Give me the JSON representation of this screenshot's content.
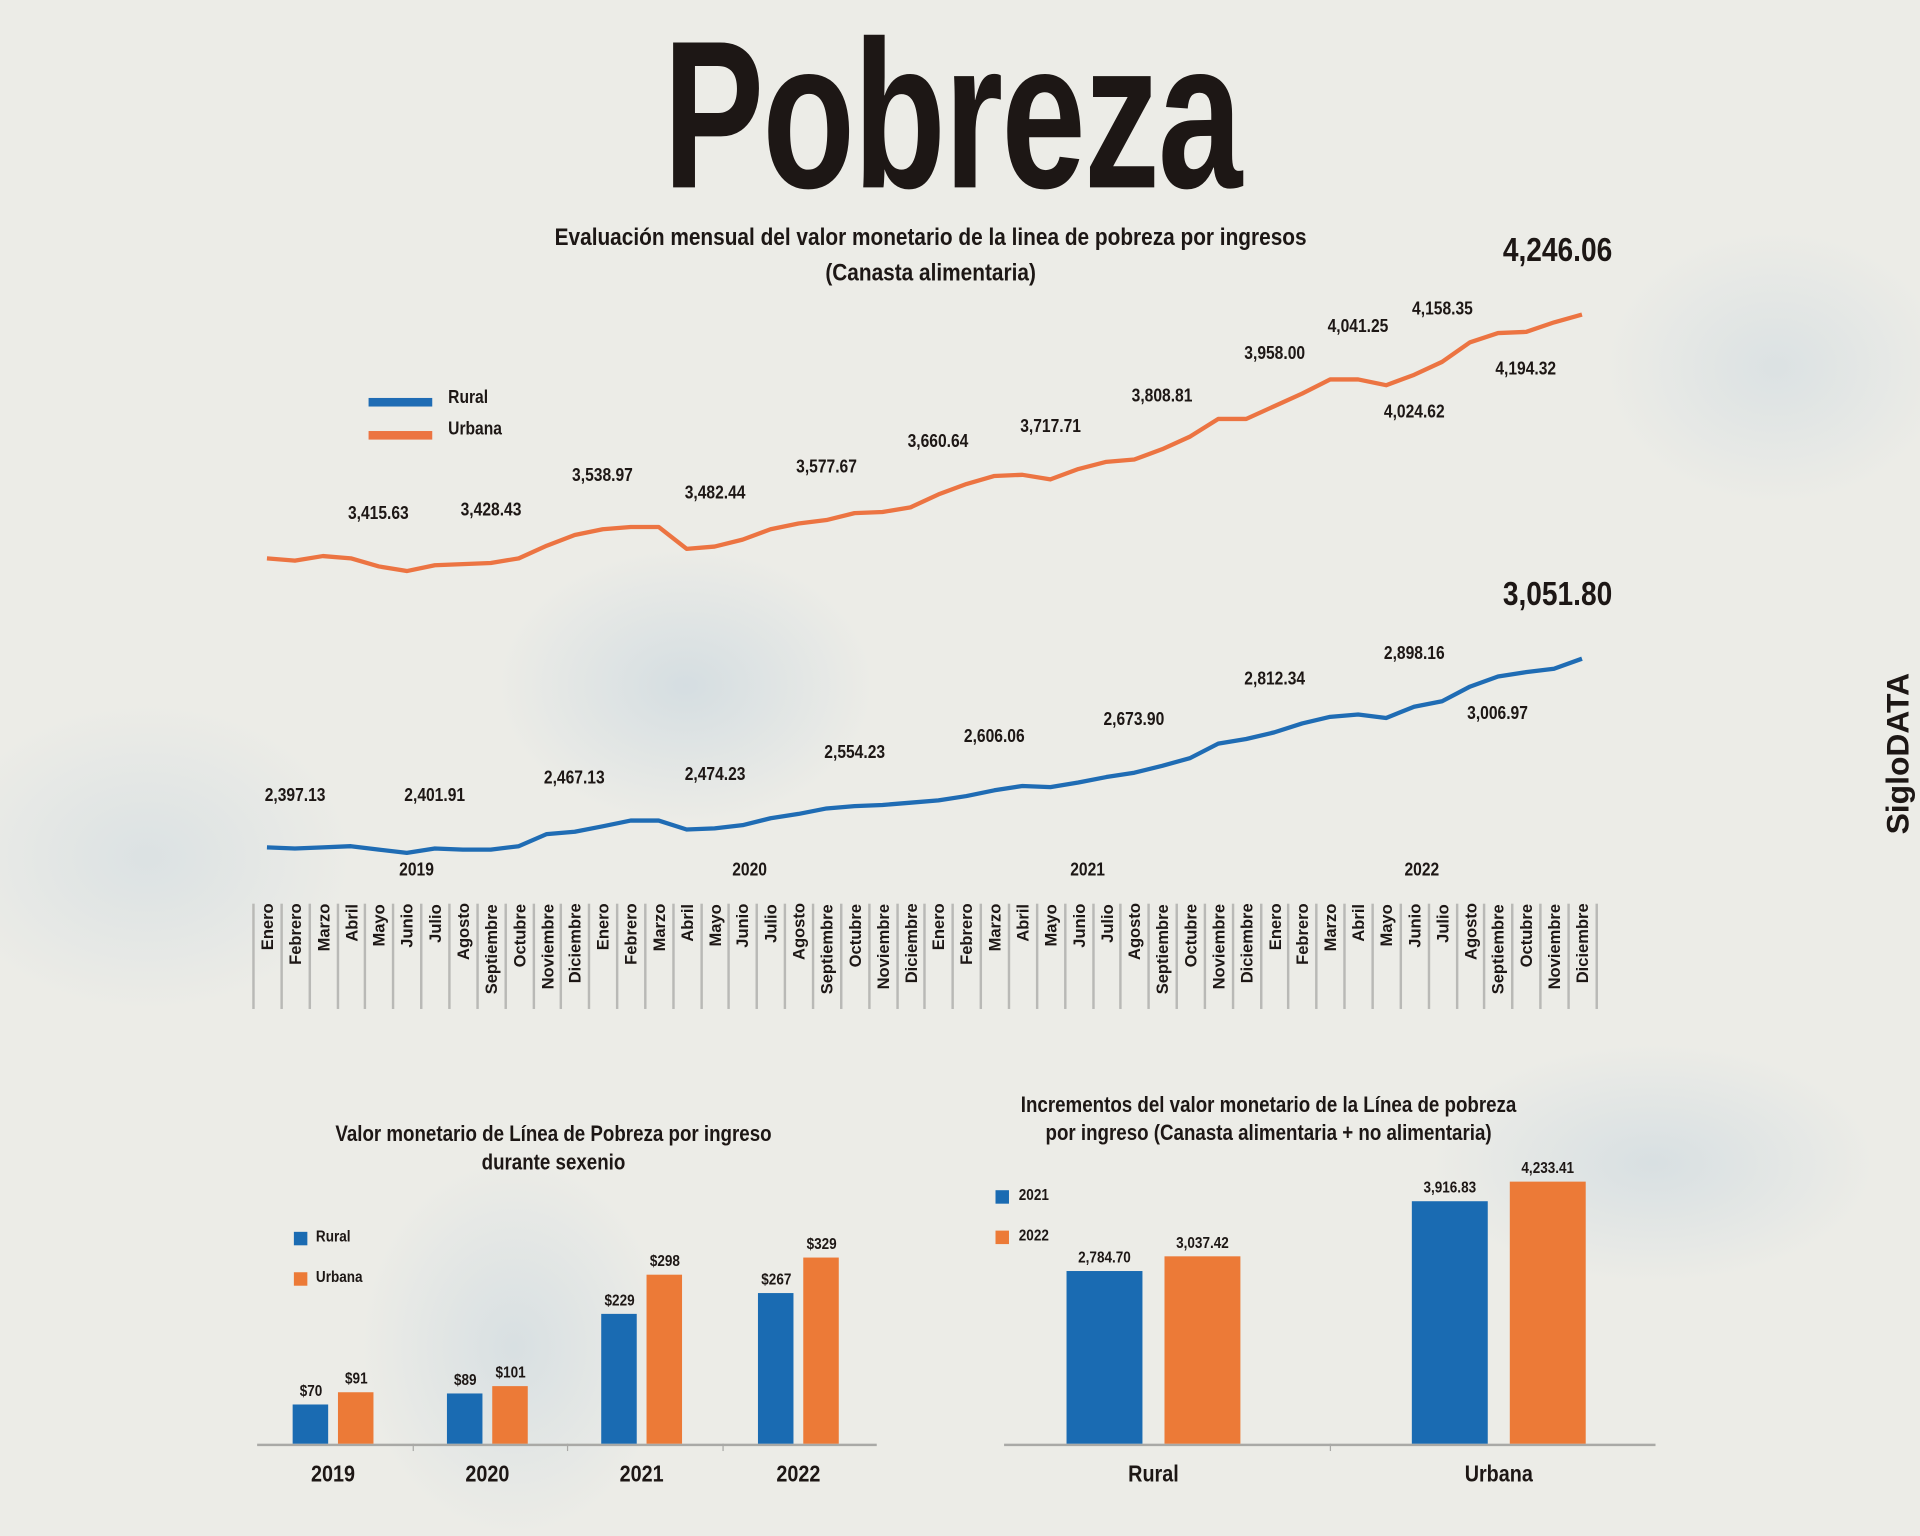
{
  "title": "Pobreza",
  "brand": "SigloDATA",
  "colors": {
    "rural": "#1f6cb4",
    "urbana": "#ec7442",
    "bar_blue": "#1a6bb2",
    "bar_orange": "#ec7a37"
  },
  "chart_data": [
    {
      "type": "line",
      "title": "Evaluación mensual del valor monetario de la linea de pobreza por ingresos",
      "subtitle": "(Canasta alimentaria)",
      "legend": {
        "position": "top-left",
        "entries": [
          "Rural",
          "Urbana"
        ]
      },
      "years": [
        "2019",
        "2020",
        "2021",
        "2022"
      ],
      "months": [
        "Enero",
        "Febrero",
        "Marzo",
        "Abril",
        "Mayo",
        "Junio",
        "Julio",
        "Agosto",
        "Septiembre",
        "Octubre",
        "Noviembre",
        "Diciembre"
      ],
      "series": [
        {
          "name": "Rural",
          "values": [
            2397,
            2393,
            2397,
            2401,
            2389,
            2378,
            2393,
            2389,
            2389,
            2401,
            2443,
            2451,
            2470,
            2490,
            2490,
            2459,
            2463,
            2474,
            2498,
            2513,
            2532,
            2540,
            2544,
            2552,
            2560,
            2575,
            2595,
            2610,
            2606,
            2622,
            2641,
            2656,
            2680,
            2707,
            2757,
            2773,
            2796,
            2827,
            2850,
            2858,
            2846,
            2885,
            2904,
            2955,
            2990,
            3005,
            3017,
            3051.8
          ]
        },
        {
          "name": "Urbana",
          "values": [
            3400,
            3392,
            3408,
            3400,
            3372,
            3356,
            3376,
            3380,
            3384,
            3400,
            3444,
            3481,
            3501,
            3509,
            3509,
            3433,
            3441,
            3465,
            3501,
            3521,
            3533,
            3557,
            3561,
            3577,
            3622,
            3658,
            3686,
            3690,
            3674,
            3710,
            3735,
            3743,
            3779,
            3823,
            3884,
            3884,
            3928,
            3972,
            4021,
            4021,
            4001,
            4037,
            4082,
            4150,
            4182,
            4186,
            4219,
            4246.06
          ]
        }
      ],
      "annotations": [
        {
          "series": "Urbana",
          "month_index": 4,
          "text": "3,415.63",
          "placement": "above"
        },
        {
          "series": "Urbana",
          "month_index": 8,
          "text": "3,428.43",
          "placement": "above"
        },
        {
          "series": "Urbana",
          "month_index": 12,
          "text": "3,538.97",
          "placement": "above"
        },
        {
          "series": "Urbana",
          "month_index": 16,
          "text": "3,482.44",
          "placement": "above"
        },
        {
          "series": "Urbana",
          "month_index": 20,
          "text": "3,577.67",
          "placement": "above"
        },
        {
          "series": "Urbana",
          "month_index": 24,
          "text": "3,660.64",
          "placement": "above"
        },
        {
          "series": "Urbana",
          "month_index": 28,
          "text": "3,717.71",
          "placement": "above"
        },
        {
          "series": "Urbana",
          "month_index": 32,
          "text": "3,808.81",
          "placement": "above"
        },
        {
          "series": "Urbana",
          "month_index": 36,
          "text": "3,958.00",
          "placement": "above"
        },
        {
          "series": "Urbana",
          "month_index": 39,
          "text": "4,041.25",
          "placement": "above"
        },
        {
          "series": "Urbana",
          "month_index": 41,
          "text": "4,024.62",
          "placement": "below"
        },
        {
          "series": "Urbana",
          "month_index": 42,
          "text": "4,158.35",
          "placement": "above"
        },
        {
          "series": "Urbana",
          "month_index": 45,
          "text": "4,194.32",
          "placement": "below"
        },
        {
          "series": "Urbana",
          "month_index": 47,
          "text": "4,246.06",
          "placement": "end"
        },
        {
          "series": "Rural",
          "month_index": 1,
          "text": "2,397.13",
          "placement": "above"
        },
        {
          "series": "Rural",
          "month_index": 6,
          "text": "2,401.91",
          "placement": "above"
        },
        {
          "series": "Rural",
          "month_index": 11,
          "text": "2,467.13",
          "placement": "above"
        },
        {
          "series": "Rural",
          "month_index": 16,
          "text": "2,474.23",
          "placement": "above"
        },
        {
          "series": "Rural",
          "month_index": 21,
          "text": "2,554.23",
          "placement": "above"
        },
        {
          "series": "Rural",
          "month_index": 26,
          "text": "2,606.06",
          "placement": "above"
        },
        {
          "series": "Rural",
          "month_index": 31,
          "text": "2,673.90",
          "placement": "above"
        },
        {
          "series": "Rural",
          "month_index": 36,
          "text": "2,812.34",
          "placement": "above"
        },
        {
          "series": "Rural",
          "month_index": 41,
          "text": "2,898.16",
          "placement": "above"
        },
        {
          "series": "Rural",
          "month_index": 44,
          "text": "3,006.97",
          "placement": "below"
        },
        {
          "series": "Rural",
          "month_index": 47,
          "text": "3,051.80",
          "placement": "end"
        }
      ]
    },
    {
      "type": "bar",
      "title": "Valor monetario de Línea de Pobreza por ingreso",
      "subtitle": "durante sexenio",
      "categories": [
        "2019",
        "2020",
        "2021",
        "2022"
      ],
      "legend": {
        "position": "top-left",
        "entries": [
          "Rural",
          "Urbana"
        ]
      },
      "series": [
        {
          "name": "Rural",
          "values": [
            70,
            89,
            229,
            267
          ],
          "labels": [
            "$70",
            "$89",
            "$229",
            "$267"
          ]
        },
        {
          "name": "Urbana",
          "values": [
            91,
            101,
            298,
            329
          ],
          "labels": [
            "$91",
            "$101",
            "$298",
            "$329"
          ]
        }
      ]
    },
    {
      "type": "bar",
      "title": "Incrementos del valor monetario de la Línea de pobreza",
      "subtitle": "por ingreso (Canasta alimentaria + no alimentaria)",
      "categories": [
        "Rural",
        "Urbana"
      ],
      "legend": {
        "position": "top-left",
        "entries": [
          "2021",
          "2022"
        ]
      },
      "series": [
        {
          "name": "2021",
          "values": [
            2784.7,
            3916.83
          ],
          "labels": [
            "2,784.70",
            "3,916.83"
          ]
        },
        {
          "name": "2022",
          "values": [
            3037.42,
            4233.41
          ],
          "labels": [
            "3,037.42",
            "4,233.41"
          ]
        }
      ]
    }
  ]
}
